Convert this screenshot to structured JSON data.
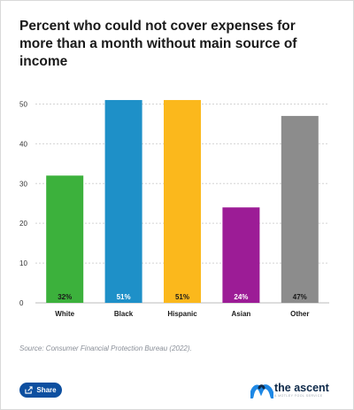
{
  "chart_data": {
    "type": "bar",
    "title": "Percent who could not cover expenses for more than a month without main source of income",
    "categories": [
      "White",
      "Black",
      "Hispanic",
      "Asian",
      "Other"
    ],
    "values": [
      32,
      51,
      51,
      24,
      47
    ],
    "data_labels": [
      "32%",
      "51%",
      "51%",
      "24%",
      "47%"
    ],
    "colors": [
      "#3cb13c",
      "#1e90c8",
      "#fbb81c",
      "#9c1c96",
      "#8c8c8c"
    ],
    "label_colors": [
      "#1a1a1a",
      "#ffffff",
      "#1a1a1a",
      "#ffffff",
      "#1a1a1a"
    ],
    "yticks": [
      0,
      10,
      20,
      30,
      40,
      50
    ],
    "ylim": [
      0,
      55
    ],
    "grid": true,
    "xlabel": "",
    "ylabel": ""
  },
  "source": "Source: Consumer Financial Protection Bureau (2022).",
  "share_label": "Share",
  "brand": {
    "name": "the ascent",
    "tagline": "A MOTLEY FOOL SERVICE",
    "color": "#1e88e5"
  }
}
